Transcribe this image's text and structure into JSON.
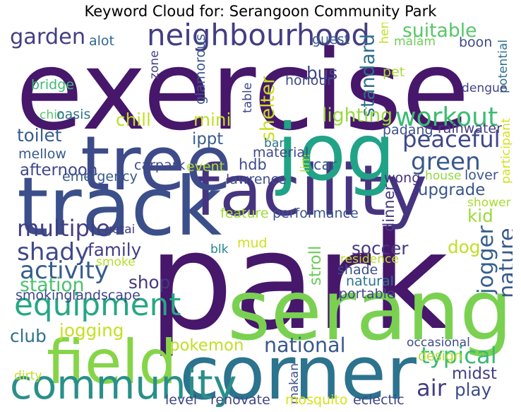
{
  "title": "Keyword Cloud for: Serangoon Community Park",
  "chart_data": {
    "type": "wordcloud",
    "title": "Keyword Cloud for: Serangoon Community Park",
    "words": [
      {
        "text": "park",
        "weight": 100,
        "color": "#46176b",
        "rotated": false
      },
      {
        "text": "exercise",
        "weight": 82,
        "color": "#46176b",
        "rotated": false
      },
      {
        "text": "corner",
        "weight": 55,
        "color": "#2c738e",
        "rotated": false
      },
      {
        "text": "serangoon",
        "weight": 62,
        "color": "#7ad151",
        "rotated": false
      },
      {
        "text": "track",
        "weight": 60,
        "color": "#3b4f8a",
        "rotated": false
      },
      {
        "text": "facility",
        "weight": 52,
        "color": "#463480",
        "rotated": false
      },
      {
        "text": "tree",
        "weight": 56,
        "color": "#3e4b8a",
        "rotated": false
      },
      {
        "text": "jog",
        "weight": 58,
        "color": "#20a386",
        "rotated": false
      },
      {
        "text": "field",
        "weight": 45,
        "color": "#86d549",
        "rotated": false
      },
      {
        "text": "community",
        "weight": 30,
        "color": "#2a8f8a",
        "rotated": false
      },
      {
        "text": "neighbourhood",
        "weight": 22,
        "color": "#433d84",
        "rotated": false
      },
      {
        "text": "equipment",
        "weight": 23,
        "color": "#26a784",
        "rotated": false
      },
      {
        "text": "multiple",
        "weight": 17,
        "color": "#433e84",
        "rotated": false
      },
      {
        "text": "shady",
        "weight": 18,
        "color": "#3f4889",
        "rotated": false
      },
      {
        "text": "activity",
        "weight": 18,
        "color": "#365c8d",
        "rotated": false
      },
      {
        "text": "garden",
        "weight": 16,
        "color": "#433e84",
        "rotated": false
      },
      {
        "text": "workout",
        "weight": 19,
        "color": "#3cbc74",
        "rotated": false
      },
      {
        "text": "green",
        "weight": 18,
        "color": "#38598c",
        "rotated": false
      },
      {
        "text": "peaceful",
        "weight": 17,
        "color": "#3f4889",
        "rotated": false
      },
      {
        "text": "typical",
        "weight": 17,
        "color": "#3aba76",
        "rotated": false
      },
      {
        "text": "air",
        "weight": 17,
        "color": "#433e84",
        "rotated": false
      },
      {
        "text": "nature",
        "weight": 16,
        "color": "#38598c",
        "rotated": true
      },
      {
        "text": "jogger",
        "weight": 16,
        "color": "#355f8d",
        "rotated": true
      },
      {
        "text": "national",
        "weight": 15,
        "color": "#38598c",
        "rotated": false
      },
      {
        "text": "suitable",
        "weight": 14,
        "color": "#56c667",
        "rotated": false
      },
      {
        "text": "standard",
        "weight": 14,
        "color": "#2e6e8e",
        "rotated": true
      },
      {
        "text": "shelter",
        "weight": 14,
        "color": "#c8e020",
        "rotated": true
      },
      {
        "text": "lighting",
        "weight": 14,
        "color": "#9bd93c",
        "rotated": false
      },
      {
        "text": "bus",
        "weight": 13,
        "color": "#404588",
        "rotated": false
      },
      {
        "text": "chill",
        "weight": 13,
        "color": "#c0df25",
        "rotated": false
      },
      {
        "text": "mini",
        "weight": 13,
        "color": "#c0df25",
        "rotated": false
      },
      {
        "text": "toilet",
        "weight": 13,
        "color": "#365c8d",
        "rotated": false
      },
      {
        "text": "afternoon",
        "weight": 12,
        "color": "#3f4889",
        "rotated": false
      },
      {
        "text": "ippt",
        "weight": 12,
        "color": "#365d8d",
        "rotated": false
      },
      {
        "text": "upgrade",
        "weight": 12,
        "color": "#39558c",
        "rotated": false
      },
      {
        "text": "kid",
        "weight": 13,
        "color": "#9bd93c",
        "rotated": false
      },
      {
        "text": "family",
        "weight": 13,
        "color": "#433e84",
        "rotated": false
      },
      {
        "text": "soccer",
        "weight": 13,
        "color": "#443983",
        "rotated": false
      },
      {
        "text": "dog",
        "weight": 13,
        "color": "#c2df23",
        "rotated": false
      },
      {
        "text": "station",
        "weight": 14,
        "color": "#4ac16d",
        "rotated": false
      },
      {
        "text": "shop",
        "weight": 13,
        "color": "#453882",
        "rotated": false
      },
      {
        "text": "stroll",
        "weight": 12,
        "color": "#6ccd5a",
        "rotated": true
      },
      {
        "text": "jogging",
        "weight": 13,
        "color": "#c5e021",
        "rotated": false
      },
      {
        "text": "club",
        "weight": 13,
        "color": "#2c728e",
        "rotated": false
      },
      {
        "text": "play",
        "weight": 13,
        "color": "#3e4c8a",
        "rotated": false
      },
      {
        "text": "midst",
        "weight": 12,
        "color": "#433e84",
        "rotated": false
      },
      {
        "text": "pokemon",
        "weight": 12,
        "color": "#c0df25",
        "rotated": false
      },
      {
        "text": "hdb",
        "weight": 11,
        "color": "#3e4c8a",
        "rotated": false
      },
      {
        "text": "car",
        "weight": 11,
        "color": "#38598c",
        "rotated": false
      },
      {
        "text": "dinner",
        "weight": 11,
        "color": "#453781",
        "rotated": true
      },
      {
        "text": "guest",
        "weight": 10,
        "color": "#38598c",
        "rotated": false
      },
      {
        "text": "alot",
        "weight": 10,
        "color": "#31688e",
        "rotated": false
      },
      {
        "text": "heng",
        "weight": 9,
        "color": "#c2df23",
        "rotated": true
      },
      {
        "text": "malam",
        "weight": 9,
        "color": "#6ece58",
        "rotated": false
      },
      {
        "text": "boon",
        "weight": 10,
        "color": "#3e4a89",
        "rotated": false
      },
      {
        "text": "pet",
        "weight": 10,
        "color": "#a8db34",
        "rotated": false
      },
      {
        "text": "bridge",
        "weight": 10,
        "color": "#3dbc74",
        "rotated": false
      },
      {
        "text": "zone",
        "weight": 9,
        "color": "#433e84",
        "rotated": true
      },
      {
        "text": "glamorous",
        "weight": 10,
        "color": "#38598c",
        "rotated": true
      },
      {
        "text": "honour",
        "weight": 10,
        "color": "#3f4889",
        "rotated": false
      },
      {
        "text": "potential",
        "weight": 9,
        "color": "#2d708e",
        "rotated": true
      },
      {
        "text": "dengue",
        "weight": 9,
        "color": "#404588",
        "rotated": false
      },
      {
        "text": "table",
        "weight": 9,
        "color": "#404588",
        "rotated": true
      },
      {
        "text": "chin",
        "weight": 9,
        "color": "#56c667",
        "rotated": false
      },
      {
        "text": "oasis",
        "weight": 10,
        "color": "#2c738e",
        "rotated": false
      },
      {
        "text": "padang",
        "weight": 10,
        "color": "#3b518b",
        "rotated": false
      },
      {
        "text": "rainwater",
        "weight": 10,
        "color": "#443b84",
        "rotated": false
      },
      {
        "text": "bar",
        "weight": 9,
        "color": "#2c738e",
        "rotated": false
      },
      {
        "text": "lim",
        "weight": 9,
        "color": "#b5de2b",
        "rotated": true
      },
      {
        "text": "participant",
        "weight": 9,
        "color": "#d0e11c",
        "rotated": true
      },
      {
        "text": "mellow",
        "weight": 10,
        "color": "#38598c",
        "rotated": false
      },
      {
        "text": "material",
        "weight": 10,
        "color": "#3f4889",
        "rotated": false
      },
      {
        "text": "carpark",
        "weight": 10,
        "color": "#3f4889",
        "rotated": false
      },
      {
        "text": "event",
        "weight": 10,
        "color": "#b8de29",
        "rotated": false
      },
      {
        "text": "emergency",
        "weight": 10,
        "color": "#38598c",
        "rotated": false
      },
      {
        "text": "lawrence",
        "weight": 10,
        "color": "#3e4c8a",
        "rotated": false
      },
      {
        "text": "wong",
        "weight": 10,
        "color": "#472d7b",
        "rotated": false
      },
      {
        "text": "house",
        "weight": 9,
        "color": "#94d840",
        "rotated": false
      },
      {
        "text": "lover",
        "weight": 10,
        "color": "#3b528b",
        "rotated": false
      },
      {
        "text": "feature",
        "weight": 10,
        "color": "#a2da37",
        "rotated": false
      },
      {
        "text": "performance",
        "weight": 10,
        "color": "#3b518b",
        "rotated": false
      },
      {
        "text": "shower",
        "weight": 9,
        "color": "#aadc32",
        "rotated": false
      },
      {
        "text": "getai",
        "weight": 9,
        "color": "#423f85",
        "rotated": false
      },
      {
        "text": "blk",
        "weight": 9,
        "color": "#25848e",
        "rotated": false
      },
      {
        "text": "mud",
        "weight": 10,
        "color": "#cde11d",
        "rotated": false
      },
      {
        "text": "residence",
        "weight": 9,
        "color": "#b8de29",
        "rotated": false
      },
      {
        "text": "smoke",
        "weight": 9,
        "color": "#b5de2b",
        "rotated": false
      },
      {
        "text": "shade",
        "weight": 10,
        "color": "#3b518b",
        "rotated": false
      },
      {
        "text": "natural",
        "weight": 10,
        "color": "#2c738e",
        "rotated": false
      },
      {
        "text": "smoking",
        "weight": 10,
        "color": "#3f4889",
        "rotated": false
      },
      {
        "text": "landscape",
        "weight": 10,
        "color": "#404588",
        "rotated": false
      },
      {
        "text": "portable",
        "weight": 10,
        "color": "#3f4889",
        "rotated": false
      },
      {
        "text": "occasional",
        "weight": 9,
        "color": "#3e4c8a",
        "rotated": false
      },
      {
        "text": "dirty",
        "weight": 9,
        "color": "#c0df25",
        "rotated": false
      },
      {
        "text": "design",
        "weight": 10,
        "color": "#b5de2b",
        "rotated": false
      },
      {
        "text": "makan",
        "weight": 9,
        "color": "#3b528b",
        "rotated": true
      },
      {
        "text": "level",
        "weight": 10,
        "color": "#404588",
        "rotated": false
      },
      {
        "text": "renovate",
        "weight": 10,
        "color": "#404588",
        "rotated": false
      },
      {
        "text": "mosquito",
        "weight": 10,
        "color": "#d5e21a",
        "rotated": false
      },
      {
        "text": "eclectic",
        "weight": 10,
        "color": "#404588",
        "rotated": false
      }
    ]
  }
}
